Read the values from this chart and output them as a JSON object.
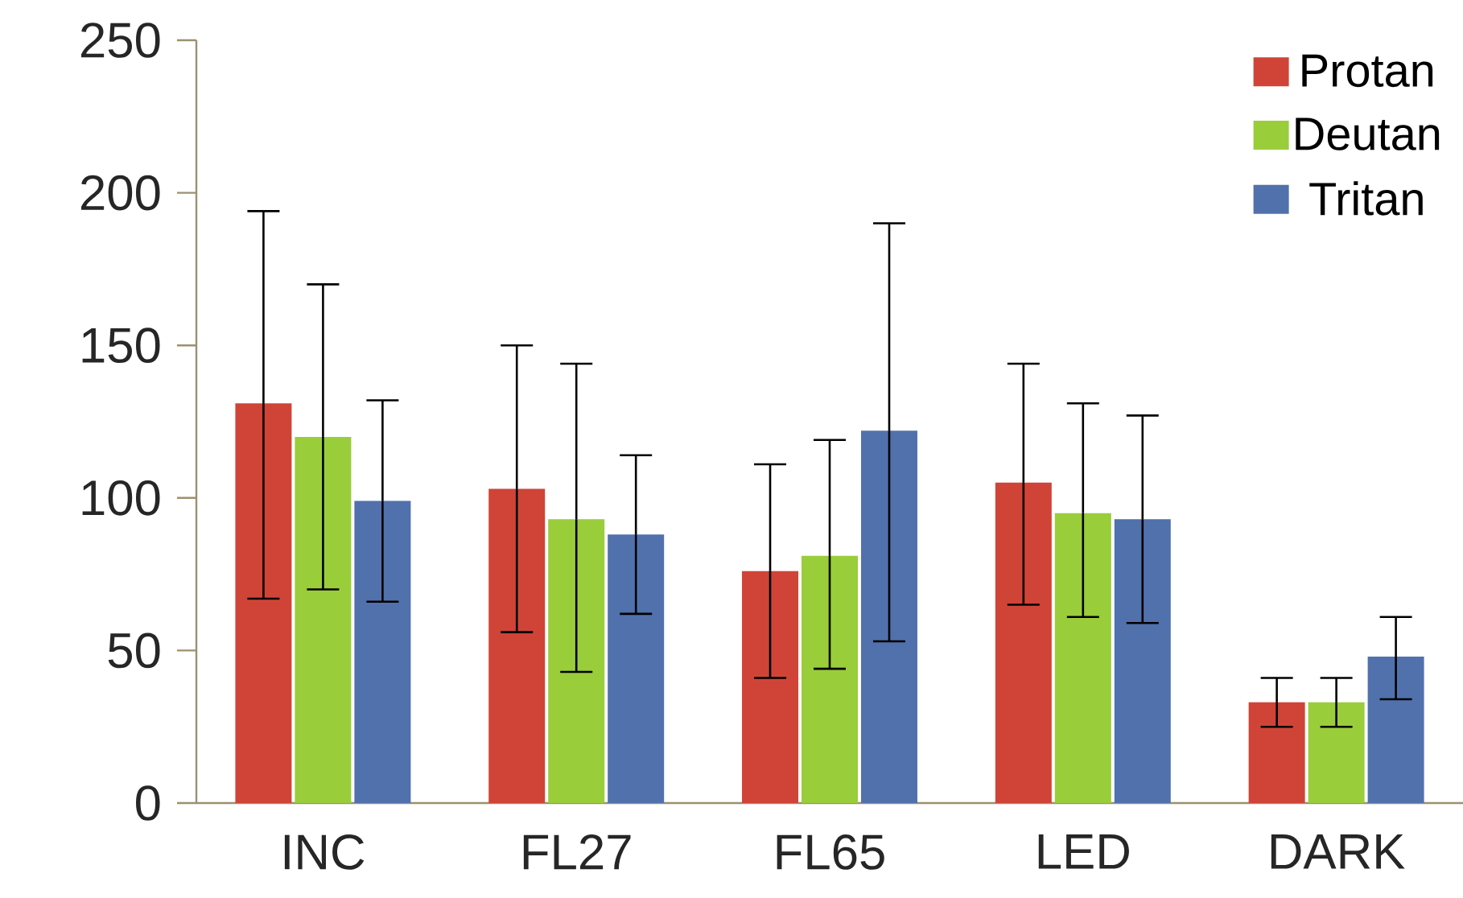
{
  "chart_data": {
    "type": "bar",
    "categories": [
      "INC",
      "FL27",
      "FL65",
      "LED",
      "DARK"
    ],
    "series": [
      {
        "name": "Protan",
        "color": "#d04437",
        "values": [
          131,
          103,
          76,
          105,
          33
        ],
        "errors": [
          [
            67,
            194
          ],
          [
            56,
            150
          ],
          [
            41,
            111
          ],
          [
            65,
            144
          ],
          [
            25,
            41
          ]
        ]
      },
      {
        "name": "Deutan",
        "color": "#9acd3a",
        "values": [
          120,
          93,
          81,
          95,
          33
        ],
        "errors": [
          [
            70,
            170
          ],
          [
            43,
            144
          ],
          [
            44,
            119
          ],
          [
            61,
            131
          ],
          [
            25,
            41
          ]
        ]
      },
      {
        "name": "Tritan",
        "color": "#5171ad",
        "values": [
          99,
          88,
          122,
          93,
          48
        ],
        "errors": [
          [
            66,
            132
          ],
          [
            62,
            114
          ],
          [
            53,
            190
          ],
          [
            59,
            127
          ],
          [
            34,
            61
          ]
        ]
      }
    ],
    "ylim": [
      0,
      250
    ],
    "yticks": [
      0,
      50,
      100,
      150,
      200,
      250
    ],
    "legend": "top right",
    "grid": false
  }
}
